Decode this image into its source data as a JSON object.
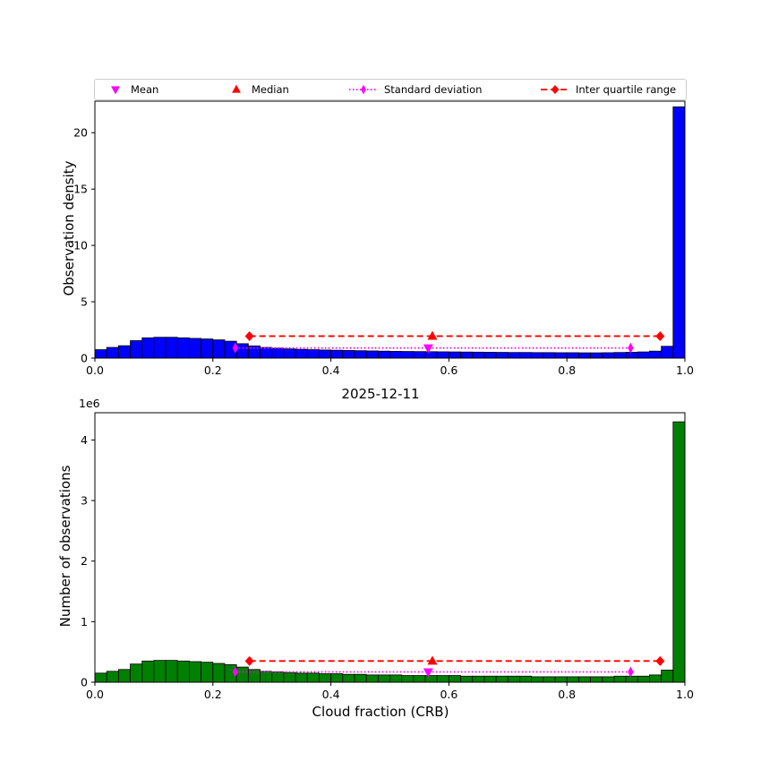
{
  "title": "2025-12-11",
  "xlabel": "Cloud fraction (CRB)",
  "offset_text": "1e6",
  "legend": {
    "items": [
      {
        "label": "Mean",
        "marker": "triangle-down",
        "color": "#ff00ff"
      },
      {
        "label": "Median",
        "marker": "triangle-up",
        "color": "#ff0000"
      },
      {
        "label": "Standard deviation",
        "marker": "thin-diamond",
        "line": "dotted",
        "color": "#ff00ff"
      },
      {
        "label": "Inter quartile range",
        "marker": "diamond",
        "line": "dashed",
        "color": "#ff0000"
      }
    ]
  },
  "chart_data": [
    {
      "type": "bar",
      "name": "observation-density-histogram",
      "ylabel": "Observation density",
      "bar_color": "#0000ff",
      "edge_color": "#000000",
      "xlim": [
        0,
        1
      ],
      "ylim": [
        0,
        22.8
      ],
      "bin_start": 0,
      "bin_width": 0.02,
      "values": [
        0.75,
        0.95,
        1.1,
        1.55,
        1.8,
        1.85,
        1.85,
        1.8,
        1.75,
        1.7,
        1.62,
        1.5,
        1.28,
        1.08,
        0.95,
        0.88,
        0.82,
        0.78,
        0.75,
        0.72,
        0.7,
        0.68,
        0.66,
        0.64,
        0.62,
        0.6,
        0.59,
        0.58,
        0.57,
        0.56,
        0.55,
        0.54,
        0.53,
        0.52,
        0.51,
        0.5,
        0.5,
        0.49,
        0.49,
        0.48,
        0.48,
        0.47,
        0.47,
        0.48,
        0.5,
        0.52,
        0.55,
        0.62,
        1.05,
        22.3
      ],
      "xticks": [
        0,
        0.2,
        0.4,
        0.6,
        0.8,
        1.0
      ],
      "xtick_labels": [
        "0.0",
        "0.2",
        "0.4",
        "0.6",
        "0.8",
        "1.0"
      ],
      "yticks": [
        0,
        5,
        10,
        15,
        20
      ],
      "ytick_labels": [
        "0",
        "5",
        "10",
        "15",
        "20"
      ],
      "stats": {
        "mean": {
          "x": 0.565,
          "y": 0.9,
          "color": "#ff00ff"
        },
        "median": {
          "x": 0.572,
          "y": 1.95,
          "color": "#ff0000"
        },
        "std": {
          "x1": 0.238,
          "x2": 0.908,
          "y": 0.9,
          "color": "#ff00ff"
        },
        "iqr": {
          "x1": 0.262,
          "x2": 0.958,
          "y": 1.95,
          "color": "#ff0000"
        }
      }
    },
    {
      "type": "bar",
      "name": "observation-count-histogram",
      "ylabel": "Number of observations",
      "unit": "1e6",
      "bar_color": "#008000",
      "edge_color": "#000000",
      "xlim": [
        0,
        1
      ],
      "ylim": [
        0,
        4.45
      ],
      "bin_start": 0,
      "bin_width": 0.02,
      "values": [
        0.15,
        0.18,
        0.21,
        0.3,
        0.35,
        0.36,
        0.36,
        0.35,
        0.34,
        0.33,
        0.31,
        0.29,
        0.25,
        0.21,
        0.18,
        0.17,
        0.16,
        0.15,
        0.15,
        0.14,
        0.14,
        0.13,
        0.13,
        0.12,
        0.12,
        0.12,
        0.11,
        0.11,
        0.11,
        0.11,
        0.11,
        0.1,
        0.1,
        0.1,
        0.1,
        0.1,
        0.1,
        0.09,
        0.09,
        0.09,
        0.09,
        0.09,
        0.09,
        0.09,
        0.1,
        0.1,
        0.1,
        0.12,
        0.2,
        4.3
      ],
      "xticks": [
        0,
        0.2,
        0.4,
        0.6,
        0.8,
        1.0
      ],
      "xtick_labels": [
        "0.0",
        "0.2",
        "0.4",
        "0.6",
        "0.8",
        "1.0"
      ],
      "yticks": [
        0,
        1,
        2,
        3,
        4
      ],
      "ytick_labels": [
        "0",
        "1",
        "2",
        "3",
        "4"
      ],
      "stats": {
        "mean": {
          "x": 0.565,
          "y": 0.17,
          "color": "#ff00ff"
        },
        "median": {
          "x": 0.572,
          "y": 0.35,
          "color": "#ff0000"
        },
        "std": {
          "x1": 0.238,
          "x2": 0.908,
          "y": 0.17,
          "color": "#ff00ff"
        },
        "iqr": {
          "x1": 0.262,
          "x2": 0.958,
          "y": 0.35,
          "color": "#ff0000"
        }
      }
    }
  ]
}
